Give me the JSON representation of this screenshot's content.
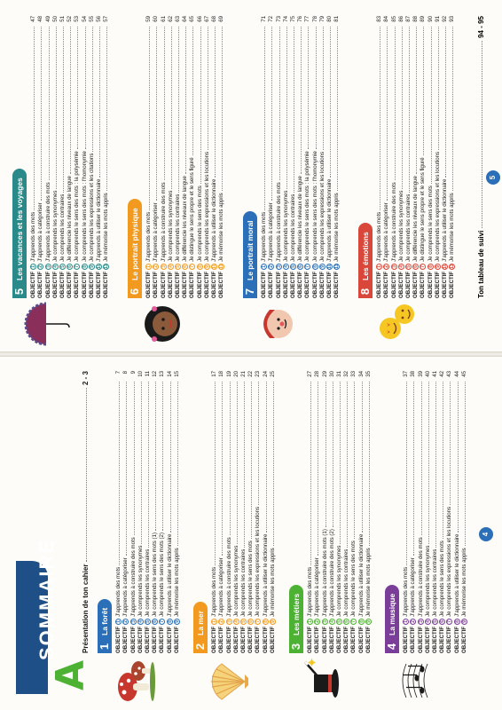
{
  "title": "SOMMAIRE",
  "brand_letter": "A",
  "intro": {
    "label": "Présentation de ton cahier",
    "pages": "2 - 3"
  },
  "tracking": {
    "label": "Ton tableau de suivi",
    "pages": "94 - 95"
  },
  "page_numbers": {
    "left": "4",
    "right": "5"
  },
  "colors": {
    "sec1": "#2a6fb8",
    "sec2": "#f29a1f",
    "sec3": "#4db233",
    "sec4": "#7a3e98",
    "sec5": "#2a8a8a",
    "sec6": "#f29a1f",
    "sec7": "#2a6fb8",
    "sec8": "#d9473a",
    "brand": "#4db233",
    "title_bg": "#1f4f87"
  },
  "objective_prefix": "OBJECTIF",
  "sections": [
    {
      "num": "1",
      "title": "La forêt",
      "items": [
        {
          "n": "1",
          "text": "J'apprends des mots",
          "page": "7"
        },
        {
          "n": "2",
          "text": "J'apprends à catégoriser",
          "page": "8"
        },
        {
          "n": "3",
          "text": "J'apprends à construire des mots",
          "page": "9"
        },
        {
          "n": "4",
          "text": "Je comprends les synonymes",
          "page": "10"
        },
        {
          "n": "5",
          "text": "Je comprends les contraires",
          "page": "11"
        },
        {
          "n": "6",
          "text": "Je comprends le sens des mots (1)",
          "page": "12"
        },
        {
          "n": "7",
          "text": "Je comprends le sens des mots (2)",
          "page": "13"
        },
        {
          "n": "8",
          "text": "J'apprends à utiliser le dictionnaire",
          "page": "14"
        },
        {
          "n": "9",
          "text": "Je mémorise les mots appris",
          "page": "15"
        }
      ]
    },
    {
      "num": "2",
      "title": "La mer",
      "items": [
        {
          "n": "1",
          "text": "J'apprends des mots",
          "page": "17"
        },
        {
          "n": "2",
          "text": "J'apprends à catégoriser",
          "page": "18"
        },
        {
          "n": "3",
          "text": "J'apprends à construire des mots",
          "page": "19"
        },
        {
          "n": "4",
          "text": "Je comprends les synonymes",
          "page": "20"
        },
        {
          "n": "5",
          "text": "Je comprends les contraires",
          "page": "21"
        },
        {
          "n": "6",
          "text": "Je comprends le sens des mots",
          "page": "22"
        },
        {
          "n": "7",
          "text": "Je comprends les expressions et les locutions",
          "page": "23"
        },
        {
          "n": "8",
          "text": "J'apprends à utiliser le dictionnaire",
          "page": "24"
        },
        {
          "n": "9",
          "text": "Je mémorise les mots appris",
          "page": "25"
        }
      ]
    },
    {
      "num": "3",
      "title": "Les métiers",
      "items": [
        {
          "n": "1",
          "text": "J'apprends des mots",
          "page": "27"
        },
        {
          "n": "2",
          "text": "J'apprends à catégoriser",
          "page": "28"
        },
        {
          "n": "3",
          "text": "J'apprends à construire des mots (1)",
          "page": "29"
        },
        {
          "n": "4",
          "text": "J'apprends à construire des mots (2)",
          "page": "30"
        },
        {
          "n": "5",
          "text": "Je comprends les synonymes",
          "page": "31"
        },
        {
          "n": "6",
          "text": "Je comprends les contraires",
          "page": "32"
        },
        {
          "n": "7",
          "text": "Je comprends le sens des mots",
          "page": "33"
        },
        {
          "n": "8",
          "text": "J'apprends à utiliser le dictionnaire",
          "page": "34"
        },
        {
          "n": "9",
          "text": "Je mémorise les mots appris",
          "page": "35"
        }
      ]
    },
    {
      "num": "4",
      "title": "La musique",
      "items": [
        {
          "n": "1",
          "text": "J'apprends des mots",
          "page": "37"
        },
        {
          "n": "2",
          "text": "J'apprends à catégoriser",
          "page": "38"
        },
        {
          "n": "3",
          "text": "J'apprends à construire des mots",
          "page": "39"
        },
        {
          "n": "4",
          "text": "Je comprends les synonymes",
          "page": "40"
        },
        {
          "n": "5",
          "text": "Je comprends les contraires",
          "page": "41"
        },
        {
          "n": "6",
          "text": "Je comprends le sens des mots",
          "page": "42"
        },
        {
          "n": "7",
          "text": "Je comprends les expressions et les locutions",
          "page": "43"
        },
        {
          "n": "8",
          "text": "J'apprends à utiliser le dictionnaire",
          "page": "44"
        },
        {
          "n": "9",
          "text": "Je mémorise les mots appris",
          "page": "45"
        }
      ]
    },
    {
      "num": "5",
      "title": "Les vacances et les voyages",
      "items": [
        {
          "n": "1",
          "text": "J'apprends des mots",
          "page": "47"
        },
        {
          "n": "2",
          "text": "J'apprends à catégoriser",
          "page": "48"
        },
        {
          "n": "3",
          "text": "J'apprends à construire des mots",
          "page": "49"
        },
        {
          "n": "4",
          "text": "Je comprends les synonymes",
          "page": "50"
        },
        {
          "n": "5",
          "text": "Je comprends les contraires",
          "page": "51"
        },
        {
          "n": "6",
          "text": "Je différencie les niveaux de langue",
          "page": "52"
        },
        {
          "n": "7",
          "text": "Je comprends le sens des mots : la polysémie",
          "page": "53"
        },
        {
          "n": "8",
          "text": "Je comprends le sens des mots : l'homonymie",
          "page": "54"
        },
        {
          "n": "9",
          "text": "Je comprends les expressions et les citations",
          "page": "55"
        },
        {
          "n": "10",
          "text": "J'apprends à utiliser le dictionnaire",
          "page": "56"
        },
        {
          "n": "11",
          "text": "Je mémorise les mots appris",
          "page": "57"
        }
      ]
    },
    {
      "num": "6",
      "title": "Le portrait physique",
      "items": [
        {
          "n": "1",
          "text": "J'apprends des mots",
          "page": "59"
        },
        {
          "n": "2",
          "text": "J'apprends à catégoriser",
          "page": "60"
        },
        {
          "n": "3",
          "text": "J'apprends à construire des mots",
          "page": "61"
        },
        {
          "n": "4",
          "text": "Je comprends les synonymes",
          "page": "62"
        },
        {
          "n": "5",
          "text": "Je comprends les contraires",
          "page": "63"
        },
        {
          "n": "6",
          "text": "Je différencie les niveaux de langue",
          "page": "64"
        },
        {
          "n": "7",
          "text": "Je distingue le sens propre et le sens figuré",
          "page": "65"
        },
        {
          "n": "8",
          "text": "Je comprends le sens des mots",
          "page": "66"
        },
        {
          "n": "9",
          "text": "Je comprends les expressions et les locutions",
          "page": "67"
        },
        {
          "n": "10",
          "text": "J'apprends à utiliser le dictionnaire",
          "page": "68"
        },
        {
          "n": "11",
          "text": "Je mémorise les mots appris",
          "page": "69"
        }
      ]
    },
    {
      "num": "7",
      "title": "Le portrait moral",
      "items": [
        {
          "n": "1",
          "text": "J'apprends des mots",
          "page": "71"
        },
        {
          "n": "2",
          "text": "J'apprends à catégoriser",
          "page": "72"
        },
        {
          "n": "3",
          "text": "J'apprends à construire des mots",
          "page": "73"
        },
        {
          "n": "4",
          "text": "Je comprends les synonymes",
          "page": "74"
        },
        {
          "n": "5",
          "text": "Je comprends les contraires",
          "page": "75"
        },
        {
          "n": "6",
          "text": "Je différencie les niveaux de langue",
          "page": "76"
        },
        {
          "n": "7",
          "text": "Je comprends le sens des mots : la polysémie",
          "page": "77"
        },
        {
          "n": "8",
          "text": "Je comprends le sens des mots : l'homonymie",
          "page": "78"
        },
        {
          "n": "9",
          "text": "Je comprends les expressions et les locutions",
          "page": "79"
        },
        {
          "n": "10",
          "text": "J'apprends à utiliser le dictionnaire",
          "page": "80"
        },
        {
          "n": "11",
          "text": "Je mémorise les mots appris",
          "page": "81"
        }
      ]
    },
    {
      "num": "8",
      "title": "Les émotions",
      "items": [
        {
          "n": "1",
          "text": "J'apprends des mots",
          "page": "83"
        },
        {
          "n": "2",
          "text": "J'apprends à catégoriser",
          "page": "84"
        },
        {
          "n": "3",
          "text": "J'apprends à construire des mots",
          "page": "85"
        },
        {
          "n": "4",
          "text": "Je comprends les synonymes",
          "page": "86"
        },
        {
          "n": "5",
          "text": "Je comprends les contraires",
          "page": "87"
        },
        {
          "n": "6",
          "text": "Je différencie les niveaux de langue",
          "page": "88"
        },
        {
          "n": "7",
          "text": "Je distingue le sens propre et le sens figuré",
          "page": "89"
        },
        {
          "n": "8",
          "text": "Je comprends le sens des mots",
          "page": "90"
        },
        {
          "n": "9",
          "text": "Je comprends les expressions et les locutions",
          "page": "91"
        },
        {
          "n": "10",
          "text": "J'apprends à utiliser le dictionnaire",
          "page": "92"
        },
        {
          "n": "11",
          "text": "Je mémorise les mots appris",
          "page": "93"
        }
      ]
    }
  ]
}
